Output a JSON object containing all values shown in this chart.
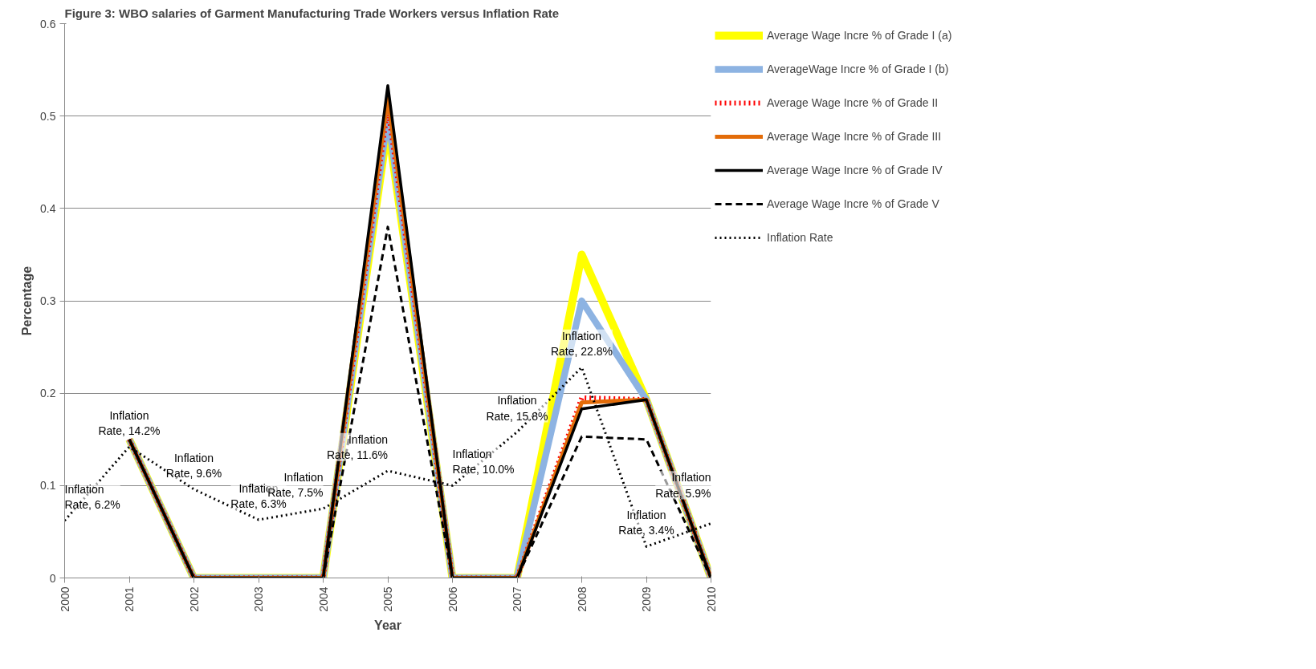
{
  "chart_data": {
    "type": "line",
    "title": "Figure 3: WBO salaries of Garment Manufacturing Trade Workers versus Inflation Rate",
    "xlabel": "Year",
    "ylabel": "Percentage",
    "x": [
      2000,
      2001,
      2002,
      2003,
      2004,
      2005,
      2006,
      2007,
      2008,
      2009,
      2010
    ],
    "xlim": [
      2000,
      2010
    ],
    "xticks": [
      2000,
      2001,
      2002,
      2003,
      2004,
      2005,
      2006,
      2007,
      2008,
      2009,
      2010
    ],
    "ylim": [
      0,
      0.6
    ],
    "yticks": [
      0,
      0.1,
      0.2,
      0.3,
      0.4,
      0.5,
      0.6
    ],
    "grid": "y",
    "legend": "right",
    "marker": "none",
    "series": [
      {
        "name": "Average Wage Incre % of Grade I (a)",
        "color": "#ffff00",
        "line_style": "solid",
        "values": [
          null,
          0.15,
          0,
          0,
          0,
          0.49,
          0,
          0,
          0.35,
          0.193,
          0
        ]
      },
      {
        "name": "AverageWage Incre % of Grade I (b)",
        "color": "#8db3e2",
        "line_style": "solid",
        "values": [
          null,
          0.15,
          0,
          0,
          0,
          0.5,
          0,
          0,
          0.3,
          0.193,
          0
        ]
      },
      {
        "name": "Average Wage Incre % of Grade II",
        "color": "#ff0000",
        "line_style": "dotted",
        "values": [
          null,
          0.15,
          0,
          0,
          0,
          0.51,
          0,
          0,
          0.195,
          0.193,
          0
        ]
      },
      {
        "name": "Average Wage Incre % of Grade III",
        "color": "#e36c09",
        "line_style": "solid",
        "values": [
          null,
          0.15,
          0,
          0,
          0,
          0.52,
          0,
          0,
          0.19,
          0.193,
          0
        ]
      },
      {
        "name": "Average Wage Incre % of Grade IV",
        "color": "#000000",
        "line_style": "solid",
        "values": [
          null,
          0.15,
          0,
          0,
          0,
          0.533,
          0,
          0,
          0.183,
          0.193,
          0
        ]
      },
      {
        "name": "Average Wage Incre % of Grade V",
        "color": "#000000",
        "line_style": "dashed",
        "values": [
          null,
          0.15,
          0,
          0,
          0,
          0.38,
          0,
          0,
          0.153,
          0.15,
          0
        ]
      },
      {
        "name": "Inflation Rate",
        "color": "#000000",
        "line_style": "dotted",
        "values": [
          0.062,
          0.142,
          0.096,
          0.063,
          0.075,
          0.116,
          0.1,
          0.158,
          0.228,
          0.034,
          0.059
        ],
        "value_labels": [
          "Inflation Rate, 6.2%",
          "Inflation Rate, 14.2%",
          "Inflation Rate, 9.6%",
          "Inflation Rate, 6.3%",
          "Inflation Rate, 7.5%",
          "Inflation Rate, 11.6%",
          "Inflation Rate, 10.0%",
          "Inflation Rate, 15.8%",
          "Inflation Rate, 22.8%",
          "Inflation Rate, 3.4%",
          "Inflation Rate, 5.9%"
        ]
      }
    ]
  }
}
